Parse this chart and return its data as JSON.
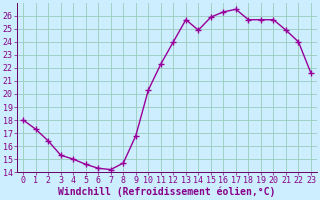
{
  "x": [
    0,
    1,
    2,
    3,
    4,
    5,
    6,
    7,
    8,
    9,
    10,
    11,
    12,
    13,
    14,
    15,
    16,
    17,
    18,
    19,
    20,
    21,
    22,
    23
  ],
  "y": [
    18.0,
    17.3,
    16.4,
    15.3,
    15.0,
    14.6,
    14.3,
    14.2,
    14.7,
    16.8,
    20.3,
    22.3,
    24.0,
    25.7,
    24.9,
    25.9,
    26.3,
    26.5,
    25.7,
    25.7,
    25.7,
    24.9,
    24.0,
    21.6
  ],
  "line_color": "#990099",
  "marker": "+",
  "marker_size": 4,
  "bg_color": "#cceeff",
  "grid_color": "#99ccbb",
  "xlabel": "Windchill (Refroidissement éolien,°C)",
  "ylim": [
    14,
    27
  ],
  "xlim": [
    -0.5,
    23.5
  ],
  "yticks": [
    14,
    15,
    16,
    17,
    18,
    19,
    20,
    21,
    22,
    23,
    24,
    25,
    26
  ],
  "xticks": [
    0,
    1,
    2,
    3,
    4,
    5,
    6,
    7,
    8,
    9,
    10,
    11,
    12,
    13,
    14,
    15,
    16,
    17,
    18,
    19,
    20,
    21,
    22,
    23
  ],
  "tick_color": "#880088",
  "label_color": "#880088",
  "font_size_tick": 6,
  "font_size_label": 7,
  "line_width": 1.0,
  "spine_color": "#888888",
  "marker_edge_width": 1.0
}
